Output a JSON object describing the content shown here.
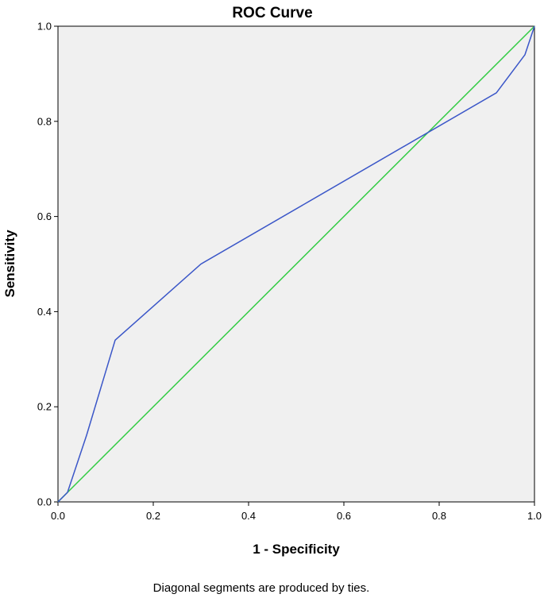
{
  "chart_data": {
    "type": "line",
    "title": "ROC Curve",
    "xlabel": "1 - Specificity",
    "ylabel": "Sensitivity",
    "xlim": [
      0,
      1
    ],
    "ylim": [
      0,
      1
    ],
    "xticks": [
      "0.0",
      "0.2",
      "0.4",
      "0.6",
      "0.8",
      "1.0"
    ],
    "yticks": [
      "0.0",
      "0.2",
      "0.4",
      "0.6",
      "0.8",
      "1.0"
    ],
    "grid": false,
    "footnote": "Diagonal segments are produced by ties.",
    "background_color": "#f0f0f0",
    "series": [
      {
        "color": "#3a56c8",
        "points": [
          [
            0,
            0
          ],
          [
            0.02,
            0.02
          ],
          [
            0.06,
            0.14
          ],
          [
            0.12,
            0.34
          ],
          [
            0.3,
            0.5
          ],
          [
            0.92,
            0.86
          ],
          [
            0.98,
            0.94
          ],
          [
            1.0,
            1.0
          ]
        ]
      },
      {
        "color": "#33cc44",
        "points": [
          [
            0,
            0
          ],
          [
            1,
            1
          ]
        ]
      }
    ]
  }
}
